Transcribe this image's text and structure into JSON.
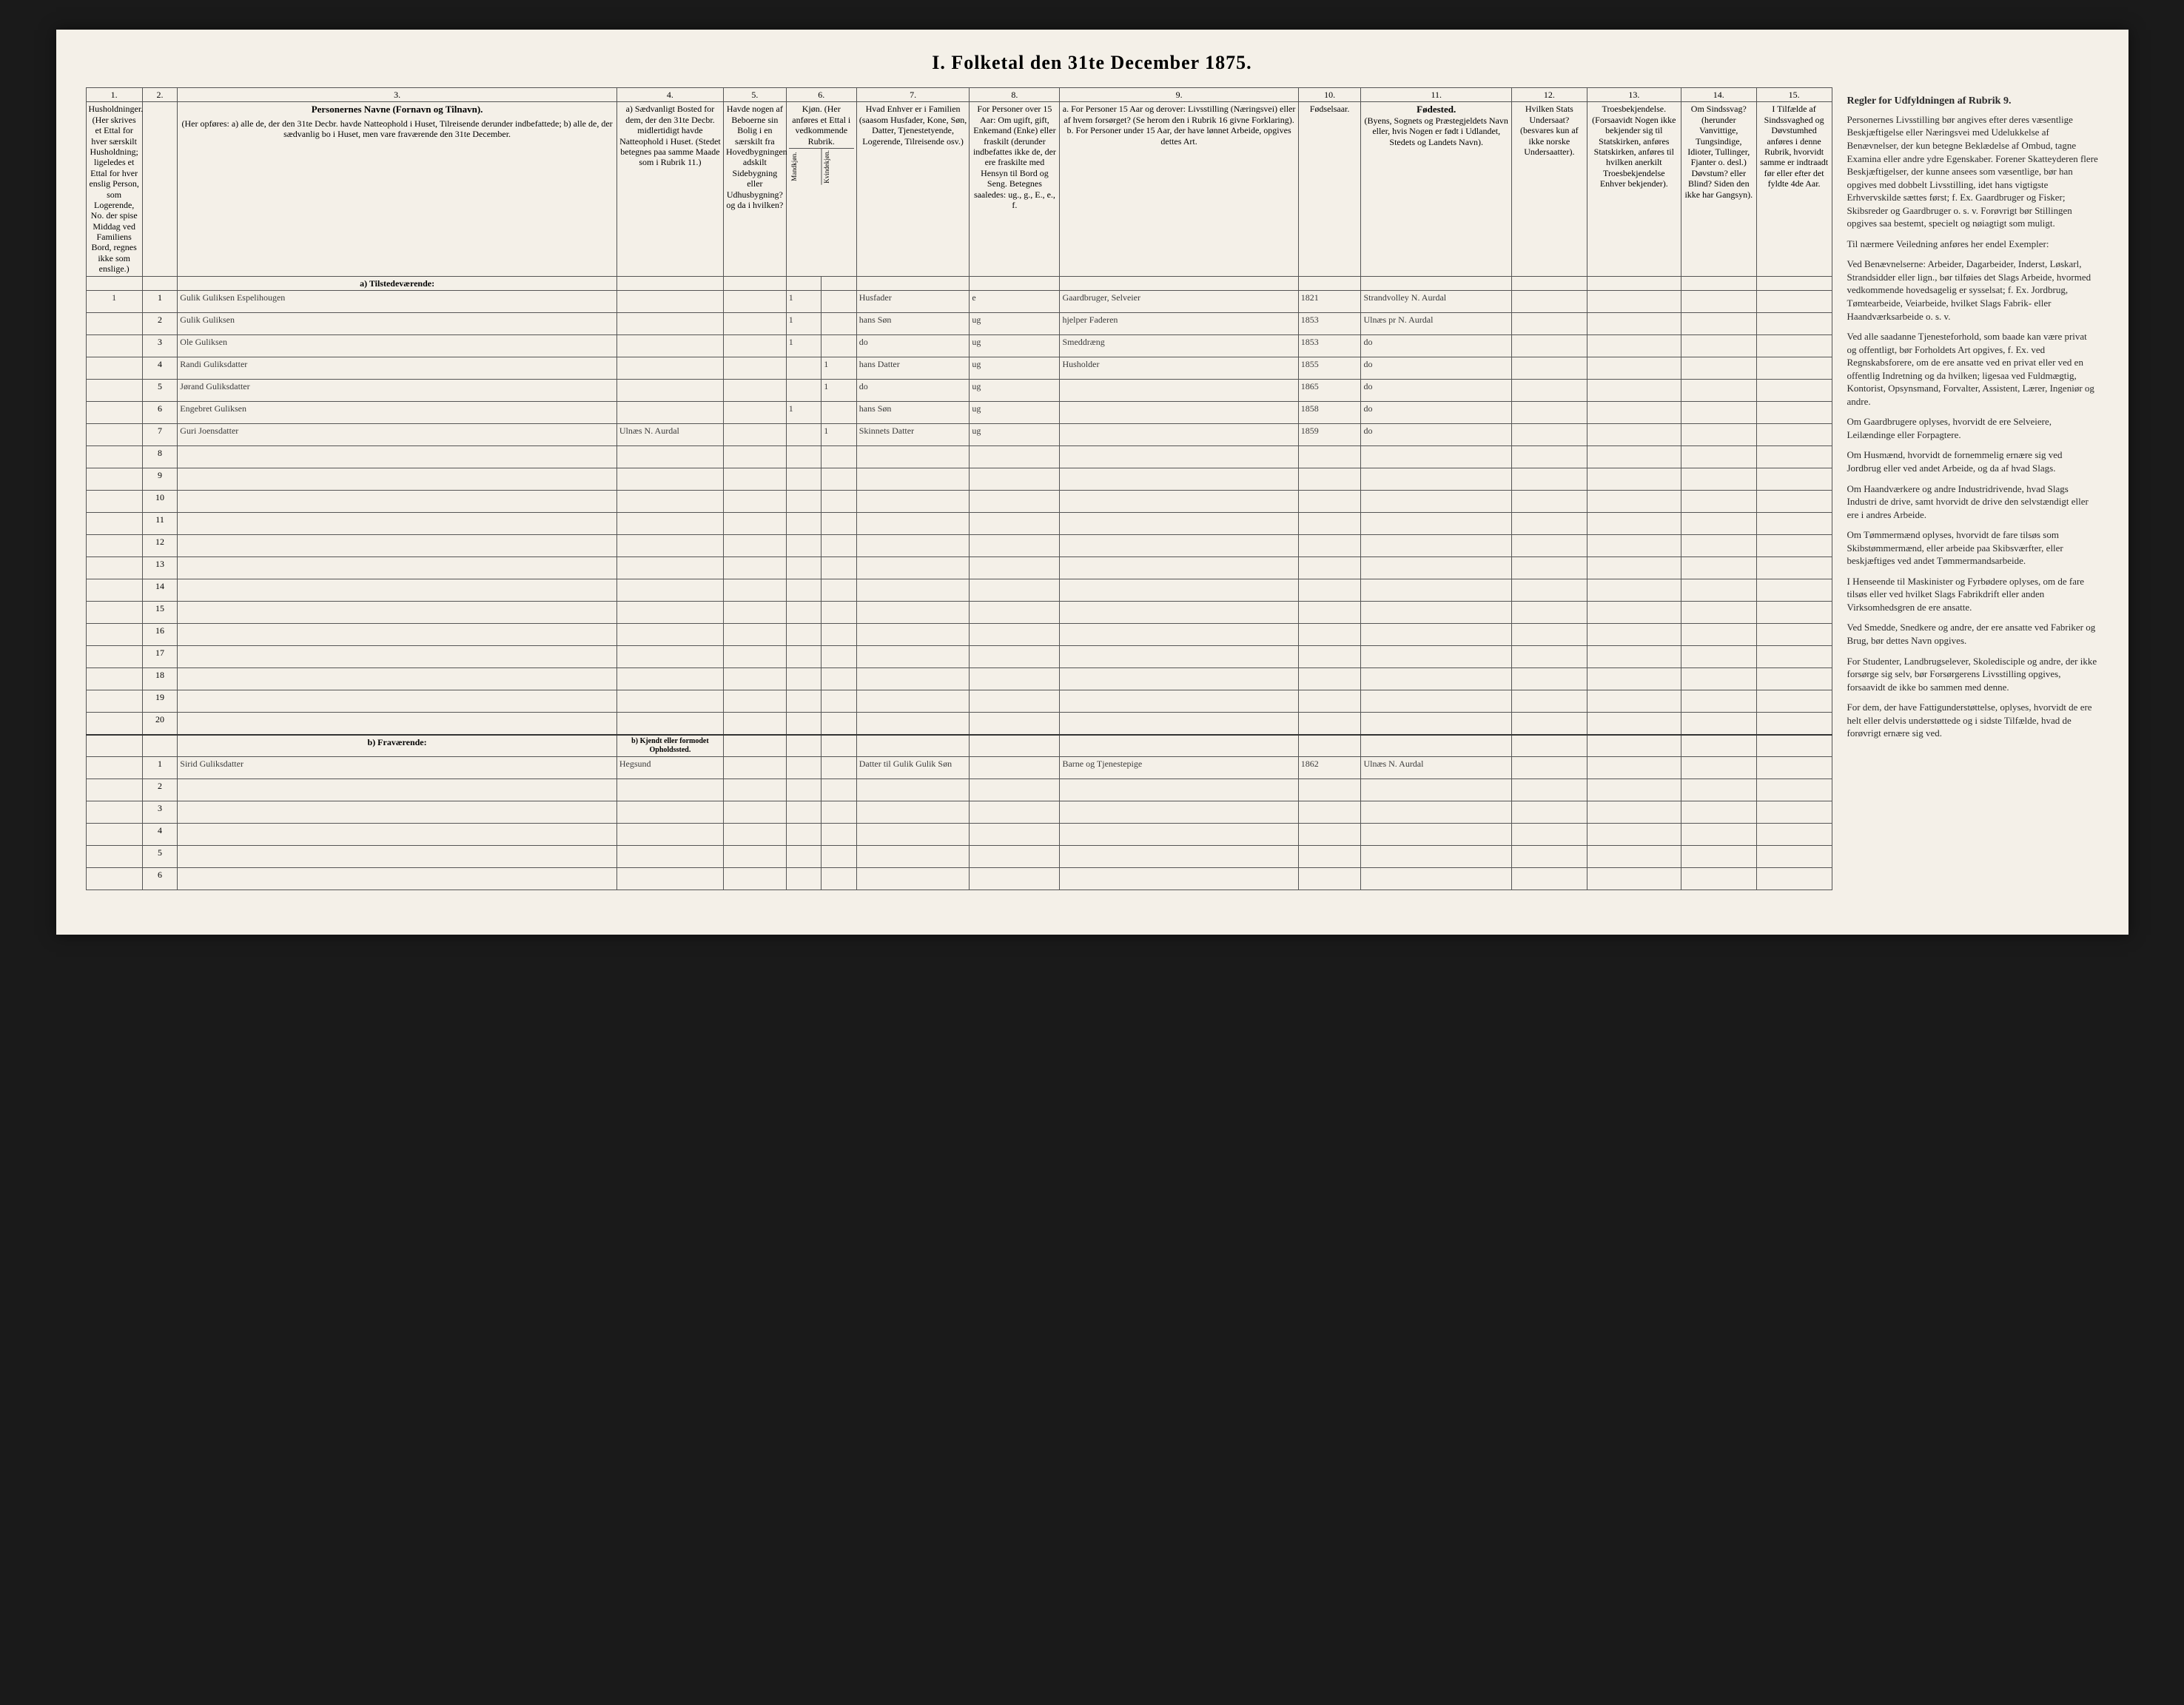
{
  "title": "I. Folketal den 31te December 1875.",
  "columns": {
    "c1": "1.",
    "c2": "2.",
    "c3": "3.",
    "c4": "4.",
    "c5": "5.",
    "c6": "6.",
    "c7": "7.",
    "c8": "8.",
    "c9": "9.",
    "c10": "10.",
    "c11": "11.",
    "c12": "12.",
    "c13": "13.",
    "c14": "14.",
    "c15": "15."
  },
  "headers": {
    "c1": "Husholdninger. (Her skrives et Ettal for hver særskilt Husholdning; ligeledes et Ettal for hver enslig Person, som Logerende, No. der spise Middag ved Familiens Bord, regnes ikke som enslige.)",
    "c3_title": "Personernes Navne (Fornavn og Tilnavn).",
    "c3_sub": "(Her opføres: a) alle de, der den 31te Decbr. havde Natteophold i Huset, Tilreisende derunder indbefattede; b) alle de, der sædvanlig bo i Huset, men vare fraværende den 31te December.",
    "c4": "a) Sædvanligt Bosted for dem, der den 31te Decbr. midlertidigt havde Natteophold i Huset. (Stedet betegnes paa samme Maade som i Rubrik 11.)",
    "c5_top": "Havde nogen af Beboerne sin Bolig i en særskilt fra Hovedbygningen adskilt Sidebygning eller Udhusbygning? og da i hvilken?",
    "c6_top": "Kjøn. (Her anføres et Ettal i vedkommende Rubrik.",
    "c6_m": "Mandkjøn.",
    "c6_k": "Kvindekjøn.",
    "c7": "Hvad Enhver er i Familien (saasom Husfader, Kone, Søn, Datter, Tjenestetyende, Logerende, Tilreisende osv.)",
    "c8": "For Personer over 15 Aar: Om ugift, gift, Enkemand (Enke) eller fraskilt (derunder indbefattes ikke de, der ere fraskilte med Hensyn til Bord og Seng. Betegnes saaledes: ug., g., E., e., f.",
    "c9": "a. For Personer 15 Aar og derover: Livsstilling (Næringsvei) eller af hvem forsørget? (Se herom den i Rubrik 16 givne Forklaring). b. For Personer under 15 Aar, der have lønnet Arbeide, opgives dettes Art.",
    "c10": "Fødselsaar.",
    "c11_title": "Fødested.",
    "c11_sub": "(Byens, Sognets og Præstegjeldets Navn eller, hvis Nogen er født i Udlandet, Stedets og Landets Navn).",
    "c12": "Hvilken Stats Undersaat? (besvares kun af ikke norske Undersaatter).",
    "c13": "Troesbekjendelse. (Forsaavidt Nogen ikke bekjender sig til Statskirken, anføres Statskirken, anføres til hvilken anerkilt Troesbekjendelse Enhver bekjender).",
    "c14": "Om Sindssvag? (herunder Vanvittige, Tungsindige, Idioter, Tullinger, Fjanter o. desl.) Døvstum? eller Blind? Siden den ikke har Gangsyn).",
    "c15": "I Tilfælde af Sindssvaghed og Døvstumhed anføres i denne Rubrik, hvorvidt samme er indtraadt før eller efter det fyldte 4de Aar.",
    "c16_title": "Regler for Udfyldningen af Rubrik 9."
  },
  "section_a": "a) Tilstedeværende:",
  "section_b": "b) Fraværende:",
  "section_b_col4": "b) Kjendt eller formodet Opholdssted.",
  "rows_a": [
    {
      "hh": "1",
      "pn": "1",
      "name": "Gulik Guliksen Espelihougen",
      "c5": "",
      "c6m": "1",
      "c6k": "",
      "role": "Husfader",
      "ms": "e",
      "occ": "Gaardbruger, Selveier",
      "year": "1821",
      "birthplace": "Strandvolley N. Aurdal"
    },
    {
      "hh": "",
      "pn": "2",
      "name": "Gulik Guliksen",
      "c5": "",
      "c6m": "1",
      "c6k": "",
      "role": "hans Søn",
      "ms": "ug",
      "occ": "hjelper Faderen",
      "year": "1853",
      "birthplace": "Ulnæs pr N. Aurdal"
    },
    {
      "hh": "",
      "pn": "3",
      "name": "Ole Guliksen",
      "c5": "",
      "c6m": "1",
      "c6k": "",
      "role": "do",
      "ms": "ug",
      "occ": "Smeddræng",
      "year": "1853",
      "birthplace": "do"
    },
    {
      "hh": "",
      "pn": "4",
      "name": "Randi Guliksdatter",
      "c5": "",
      "c6m": "",
      "c6k": "1",
      "role": "hans Datter",
      "ms": "ug",
      "occ": "Husholder",
      "year": "1855",
      "birthplace": "do"
    },
    {
      "hh": "",
      "pn": "5",
      "name": "Jørand Guliksdatter",
      "c5": "",
      "c6m": "",
      "c6k": "1",
      "role": "do",
      "ms": "ug",
      "occ": "",
      "year": "1865",
      "birthplace": "do"
    },
    {
      "hh": "",
      "pn": "6",
      "name": "Engebret Guliksen",
      "c5": "",
      "c6m": "1",
      "c6k": "",
      "role": "hans Søn",
      "ms": "ug",
      "occ": "",
      "year": "1858",
      "birthplace": "do"
    },
    {
      "hh": "",
      "pn": "7",
      "name": "Guri Joensdatter",
      "c4": "Ulnæs N. Aurdal",
      "c5": "",
      "c6m": "",
      "c6k": "1",
      "role": "Skinnets Datter",
      "ms": "ug",
      "occ": "",
      "year": "1859",
      "birthplace": "do"
    }
  ],
  "empty_a": [
    "8",
    "9",
    "10",
    "11",
    "12",
    "13",
    "14",
    "15",
    "16",
    "17",
    "18",
    "19",
    "20"
  ],
  "rows_b": [
    {
      "hh": "",
      "pn": "1",
      "name": "Sirid Guliksdatter",
      "c4": "Hegsund",
      "role": "Datter til Gulik Gulik Søn",
      "occ": "Barne og Tjenestepige",
      "year": "1862",
      "birthplace": "Ulnæs N. Aurdal"
    }
  ],
  "empty_b": [
    "2",
    "3",
    "4",
    "5",
    "6"
  ],
  "sidebar": {
    "p1": "Personernes Livsstilling bør angives efter deres væsentlige Beskjæftigelse eller Næringsvei med Udelukkelse af Benævnelser, der kun betegne Beklædelse af Ombud, tagne Examina eller andre ydre Egenskaber. Forener Skatteyderen flere Beskjæftigelser, der kunne ansees som væsentlige, bør han opgives med dobbelt Livsstilling, idet hans vigtigste Erhvervskilde sættes først; f. Ex. Gaardbruger og Fisker; Skibsreder og Gaardbruger o. s. v.  Forøvrigt bør Stillingen opgives saa bestemt, specielt og nøiagtigt som muligt.",
    "p2": "Til nærmere Veiledning anføres her endel Exempler:",
    "p3": "Ved Benævnelserne: Arbeider, Dagarbeider, Inderst, Løskarl, Strandsidder eller lign., bør tilføies det Slags Arbeide, hvormed vedkommende hovedsagelig er sysselsat; f. Ex. Jordbrug, Tømtearbeide, Veiarbeide, hvilket Slags Fabrik- eller Haandværksarbeide o. s. v.",
    "p4": "Ved alle saadanne Tjenesteforhold, som baade kan være privat og offentligt, bør Forholdets Art opgives, f. Ex. ved Regnskabsforere, om de ere ansatte ved en privat eller ved en offentlig Indretning og da hvilken; ligesaa ved Fuldmægtig, Kontorist, Opsynsmand, Forvalter, Assistent, Lærer, Ingeniør og andre.",
    "p5": "Om Gaardbrugere oplyses, hvorvidt de ere Selveiere, Leilændinge eller Forpagtere.",
    "p6": "Om Husmænd, hvorvidt de fornemmelig ernære sig ved Jordbrug eller ved andet Arbeide, og da af hvad Slags.",
    "p7": "Om Haandværkere og andre Industridrivende, hvad Slags Industri de drive, samt hvorvidt de drive den selvstændigt eller ere i andres Arbeide.",
    "p8": "Om Tømmermænd oplyses, hvorvidt de fare tilsøs som Skibstømmermænd, eller arbeide paa Skibsværfter, eller beskjæftiges ved andet Tømmermandsarbeide.",
    "p9": "I Henseende til Maskinister og Fyrbødere oplyses, om de fare tilsøs eller ved hvilket Slags Fabrikdrift eller anden Virksomhedsgren de ere ansatte.",
    "p10": "Ved Smedde, Snedkere og andre, der ere ansatte ved Fabriker og Brug, bør dettes Navn opgives.",
    "p11": "For Studenter, Landbrugselever, Skoledisciple og andre, der ikke forsørge sig selv, bør Forsørgerens Livsstilling opgives, forsaavidt de ikke bo sammen med denne.",
    "p12": "For dem, der have Fattigunderstøttelse, oplyses, hvorvidt de ere helt eller delvis understøttede og i sidste Tilfælde, hvad de forøvrigt ernære sig ved."
  }
}
